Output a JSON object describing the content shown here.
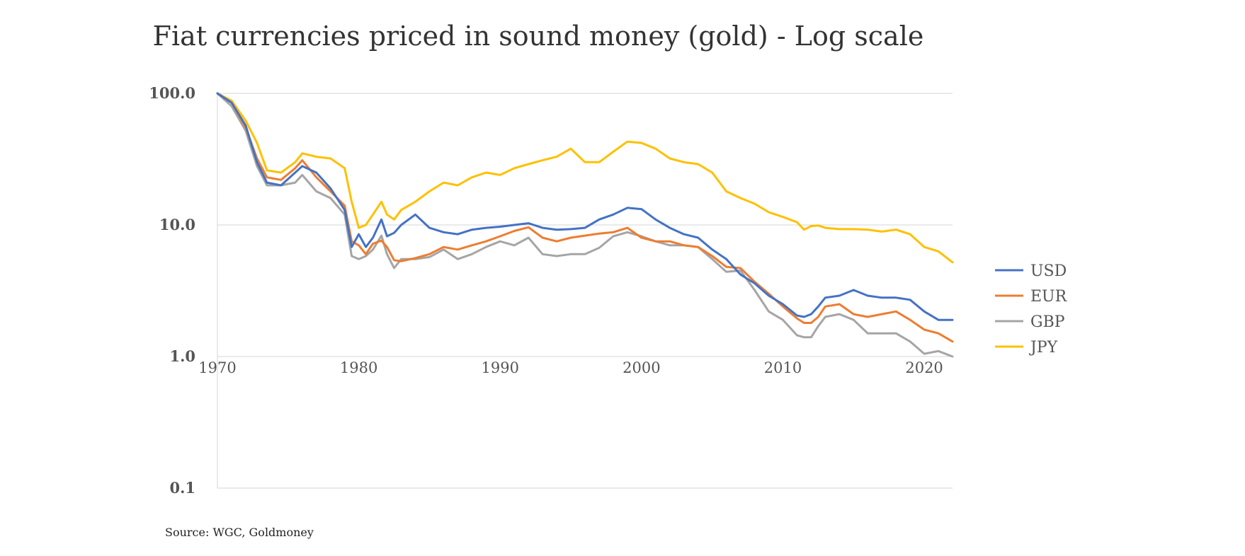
{
  "chart_data": {
    "type": "line",
    "title": "Fiat currencies priced in sound money (gold) - Log scale",
    "xlabel": "",
    "ylabel": "",
    "yscale": "log",
    "ylim": [
      0.1,
      100
    ],
    "xlim": [
      1970,
      2022
    ],
    "yticks": [
      {
        "value": 100,
        "label": "100.0"
      },
      {
        "value": 10,
        "label": "10.0"
      },
      {
        "value": 1,
        "label": "1.0"
      },
      {
        "value": 0.1,
        "label": "0.1"
      }
    ],
    "xticks": [
      {
        "value": 1970,
        "label": "1970"
      },
      {
        "value": 1980,
        "label": "1980"
      },
      {
        "value": 1990,
        "label": "1990"
      },
      {
        "value": 2000,
        "label": "2000"
      },
      {
        "value": 2010,
        "label": "2010"
      },
      {
        "value": 2020,
        "label": "2020"
      }
    ],
    "grid": true,
    "legend_position": "right",
    "series": [
      {
        "name": "USD",
        "color": "#4472C4",
        "x": [
          1970,
          1971,
          1972,
          1972.8,
          1973.5,
          1974.5,
          1975.5,
          1976,
          1977,
          1978,
          1979,
          1979.5,
          1980,
          1980.5,
          1981,
          1981.6,
          1982,
          1982.5,
          1983,
          1984,
          1985,
          1986,
          1987,
          1988,
          1989,
          1990,
          1991,
          1992,
          1993,
          1994,
          1995,
          1996,
          1997,
          1998,
          1999,
          2000,
          2001,
          2002,
          2003,
          2004,
          2005,
          2006,
          2007,
          2008,
          2009,
          2010,
          2011,
          2011.5,
          2012,
          2012.5,
          2013,
          2014,
          2015,
          2016,
          2017,
          2018,
          2019,
          2020,
          2021,
          2022
        ],
        "values": [
          100,
          85,
          57,
          30,
          21,
          20,
          25,
          28,
          25,
          19,
          13,
          6.8,
          8.5,
          6.8,
          8,
          11,
          8.2,
          8.7,
          10,
          12,
          9.5,
          8.8,
          8.5,
          9.2,
          9.5,
          9.7,
          10.0,
          10.3,
          9.5,
          9.2,
          9.3,
          9.5,
          11,
          12,
          13.5,
          13.2,
          11,
          9.5,
          8.5,
          8,
          6.5,
          5.5,
          4.2,
          3.6,
          2.9,
          2.5,
          2.05,
          2.0,
          2.1,
          2.4,
          2.8,
          2.9,
          3.2,
          2.9,
          2.8,
          2.8,
          2.7,
          2.2,
          1.9,
          1.9
        ]
      },
      {
        "name": "EUR",
        "color": "#ED7D31",
        "x": [
          1970,
          1971,
          1972,
          1972.8,
          1973.5,
          1974.5,
          1975.5,
          1976,
          1977,
          1978,
          1979,
          1979.5,
          1980,
          1980.5,
          1981,
          1981.6,
          1982,
          1982.5,
          1983,
          1984,
          1985,
          1986,
          1987,
          1988,
          1989,
          1990,
          1991,
          1992,
          1993,
          1994,
          1995,
          1996,
          1997,
          1998,
          1999,
          2000,
          2001,
          2002,
          2003,
          2004,
          2005,
          2006,
          2007,
          2008,
          2009,
          2010,
          2011,
          2011.5,
          2012,
          2012.5,
          2013,
          2014,
          2015,
          2016,
          2017,
          2018,
          2019,
          2020,
          2021,
          2022
        ],
        "values": [
          100,
          85,
          55,
          32,
          23,
          22,
          27,
          31,
          23,
          18,
          14,
          7.5,
          7.0,
          6.0,
          7.2,
          7.6,
          6.8,
          5.4,
          5.3,
          5.6,
          6.0,
          6.8,
          6.5,
          7.0,
          7.5,
          8.2,
          9.0,
          9.6,
          8.0,
          7.5,
          8.0,
          8.3,
          8.6,
          8.8,
          9.5,
          8.0,
          7.5,
          7.5,
          7.0,
          6.8,
          5.8,
          4.8,
          4.7,
          3.7,
          3.0,
          2.4,
          1.95,
          1.8,
          1.8,
          2.0,
          2.4,
          2.5,
          2.1,
          2.0,
          2.1,
          2.2,
          1.9,
          1.6,
          1.5,
          1.3
        ]
      },
      {
        "name": "GBP",
        "color": "#A5A5A5",
        "x": [
          1970,
          1971,
          1972,
          1972.8,
          1973.5,
          1974.5,
          1975.5,
          1976,
          1977,
          1978,
          1979,
          1979.5,
          1980,
          1980.5,
          1981,
          1981.6,
          1982,
          1982.5,
          1983,
          1984,
          1985,
          1986,
          1987,
          1988,
          1989,
          1990,
          1991,
          1992,
          1993,
          1994,
          1995,
          1996,
          1997,
          1998,
          1999,
          2000,
          2001,
          2002,
          2003,
          2004,
          2005,
          2006,
          2007,
          2008,
          2009,
          2010,
          2011,
          2011.5,
          2012,
          2012.5,
          2013,
          2014,
          2015,
          2016,
          2017,
          2018,
          2019,
          2020,
          2021,
          2022
        ],
        "values": [
          100,
          80,
          52,
          28,
          20,
          20,
          21,
          24,
          18,
          16,
          12,
          5.8,
          5.5,
          5.8,
          6.5,
          8.3,
          6.0,
          4.7,
          5.5,
          5.5,
          5.7,
          6.5,
          5.5,
          6.0,
          6.8,
          7.5,
          7.0,
          8.0,
          6.0,
          5.8,
          6.0,
          6.0,
          6.7,
          8.2,
          8.8,
          8.2,
          7.5,
          7.0,
          7.0,
          6.8,
          5.5,
          4.4,
          4.5,
          3.2,
          2.2,
          1.9,
          1.45,
          1.4,
          1.4,
          1.7,
          2.0,
          2.1,
          1.9,
          1.5,
          1.5,
          1.5,
          1.3,
          1.05,
          1.1,
          1.0
        ]
      },
      {
        "name": "JPY",
        "color": "#FFC000",
        "x": [
          1970,
          1971,
          1972,
          1972.8,
          1973.5,
          1974.5,
          1975.5,
          1976,
          1977,
          1978,
          1979,
          1979.5,
          1980,
          1980.5,
          1981,
          1981.6,
          1982,
          1982.5,
          1983,
          1984,
          1985,
          1986,
          1987,
          1988,
          1989,
          1990,
          1991,
          1992,
          1993,
          1994,
          1995,
          1996,
          1997,
          1998,
          1999,
          2000,
          2001,
          2002,
          2003,
          2004,
          2005,
          2006,
          2007,
          2008,
          2009,
          2010,
          2011,
          2011.5,
          2012,
          2012.5,
          2013,
          2014,
          2015,
          2016,
          2017,
          2018,
          2019,
          2020,
          2021,
          2022
        ],
        "values": [
          100,
          88,
          62,
          42,
          26,
          25,
          30,
          35,
          33,
          32,
          27,
          15,
          9.5,
          10,
          12,
          15,
          12,
          11,
          13,
          15,
          18,
          21,
          20,
          23,
          25,
          24,
          27,
          29,
          31,
          33,
          38,
          30,
          30,
          36,
          43,
          42,
          38,
          32,
          30,
          29,
          25,
          18,
          16,
          14.5,
          12.5,
          11.5,
          10.5,
          9.2,
          9.8,
          9.9,
          9.5,
          9.3,
          9.3,
          9.2,
          8.9,
          9.2,
          8.5,
          6.8,
          6.3,
          5.2
        ]
      }
    ],
    "source": "Source: WGC, Goldmoney"
  }
}
